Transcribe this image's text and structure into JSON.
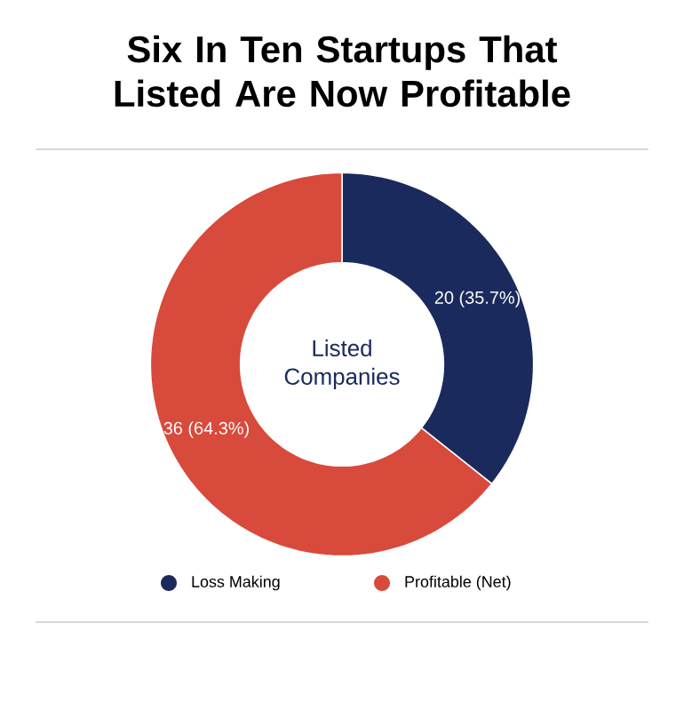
{
  "chart_data": {
    "type": "donut",
    "title": "Six In Ten Startups That Listed Are Now Profitable",
    "categories": [
      "Loss Making",
      "Profitable (Net)"
    ],
    "values": [
      20,
      36
    ],
    "colors": [
      "#1b2a5c",
      "#d84a3b"
    ],
    "value_labels": [
      "20 (35.7%)",
      "36 (64.3%)"
    ],
    "annotations": [
      "Listed Companies"
    ],
    "legend": "bottom"
  }
}
